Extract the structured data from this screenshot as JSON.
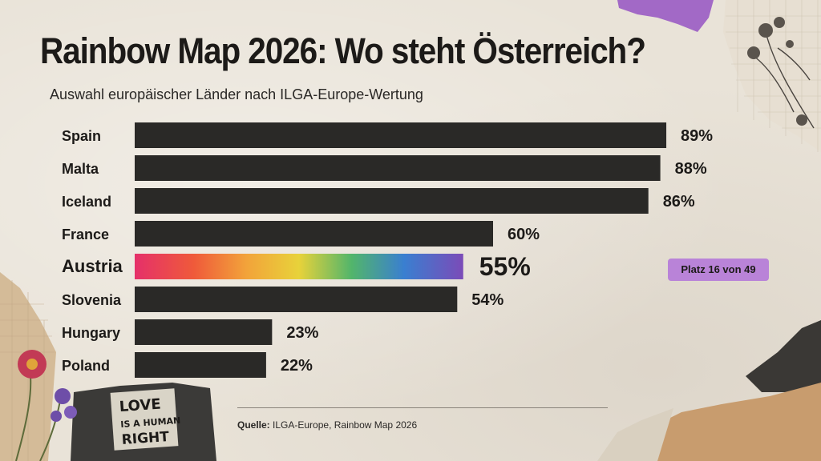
{
  "header": {
    "title": "Rainbow Map 2026: Wo steht Österreich?",
    "subtitle": "Auswahl europäischer Länder nach ILGA-Europe-Wertung"
  },
  "chart_data": {
    "type": "bar",
    "orientation": "horizontal",
    "title": "Rainbow Map 2026: Wo steht Österreich?",
    "subtitle": "Auswahl europäischer Länder nach ILGA-Europe-Wertung",
    "categories": [
      "Spain",
      "Malta",
      "Iceland",
      "France",
      "Austria",
      "Slovenia",
      "Hungary",
      "Poland"
    ],
    "values": [
      89,
      88,
      86,
      60,
      55,
      54,
      23,
      22
    ],
    "value_labels": [
      "89%",
      "88%",
      "86%",
      "60%",
      "55%",
      "54%",
      "23%",
      "22%"
    ],
    "unit": "%",
    "xlim": [
      0,
      100
    ],
    "highlight": "Austria",
    "highlight_style": "rainbow gradient",
    "bar_color": "#2a2927",
    "grid": false,
    "annotation": "Platz 16 von 49"
  },
  "annotation": {
    "rank_badge": "Platz 16 von 49",
    "color": "#b983d8"
  },
  "source": {
    "label": "Quelle:",
    "text": "ILGA-Europe, Rainbow Map 2026"
  },
  "decoration": {
    "sign_text": [
      "LOVE",
      "IS A HUMAN",
      "RIGHT"
    ]
  },
  "colors": {
    "background": "#e9e3d8",
    "bar": "#2a2927",
    "text": "#1c1a18",
    "accent": "#b983d8"
  }
}
